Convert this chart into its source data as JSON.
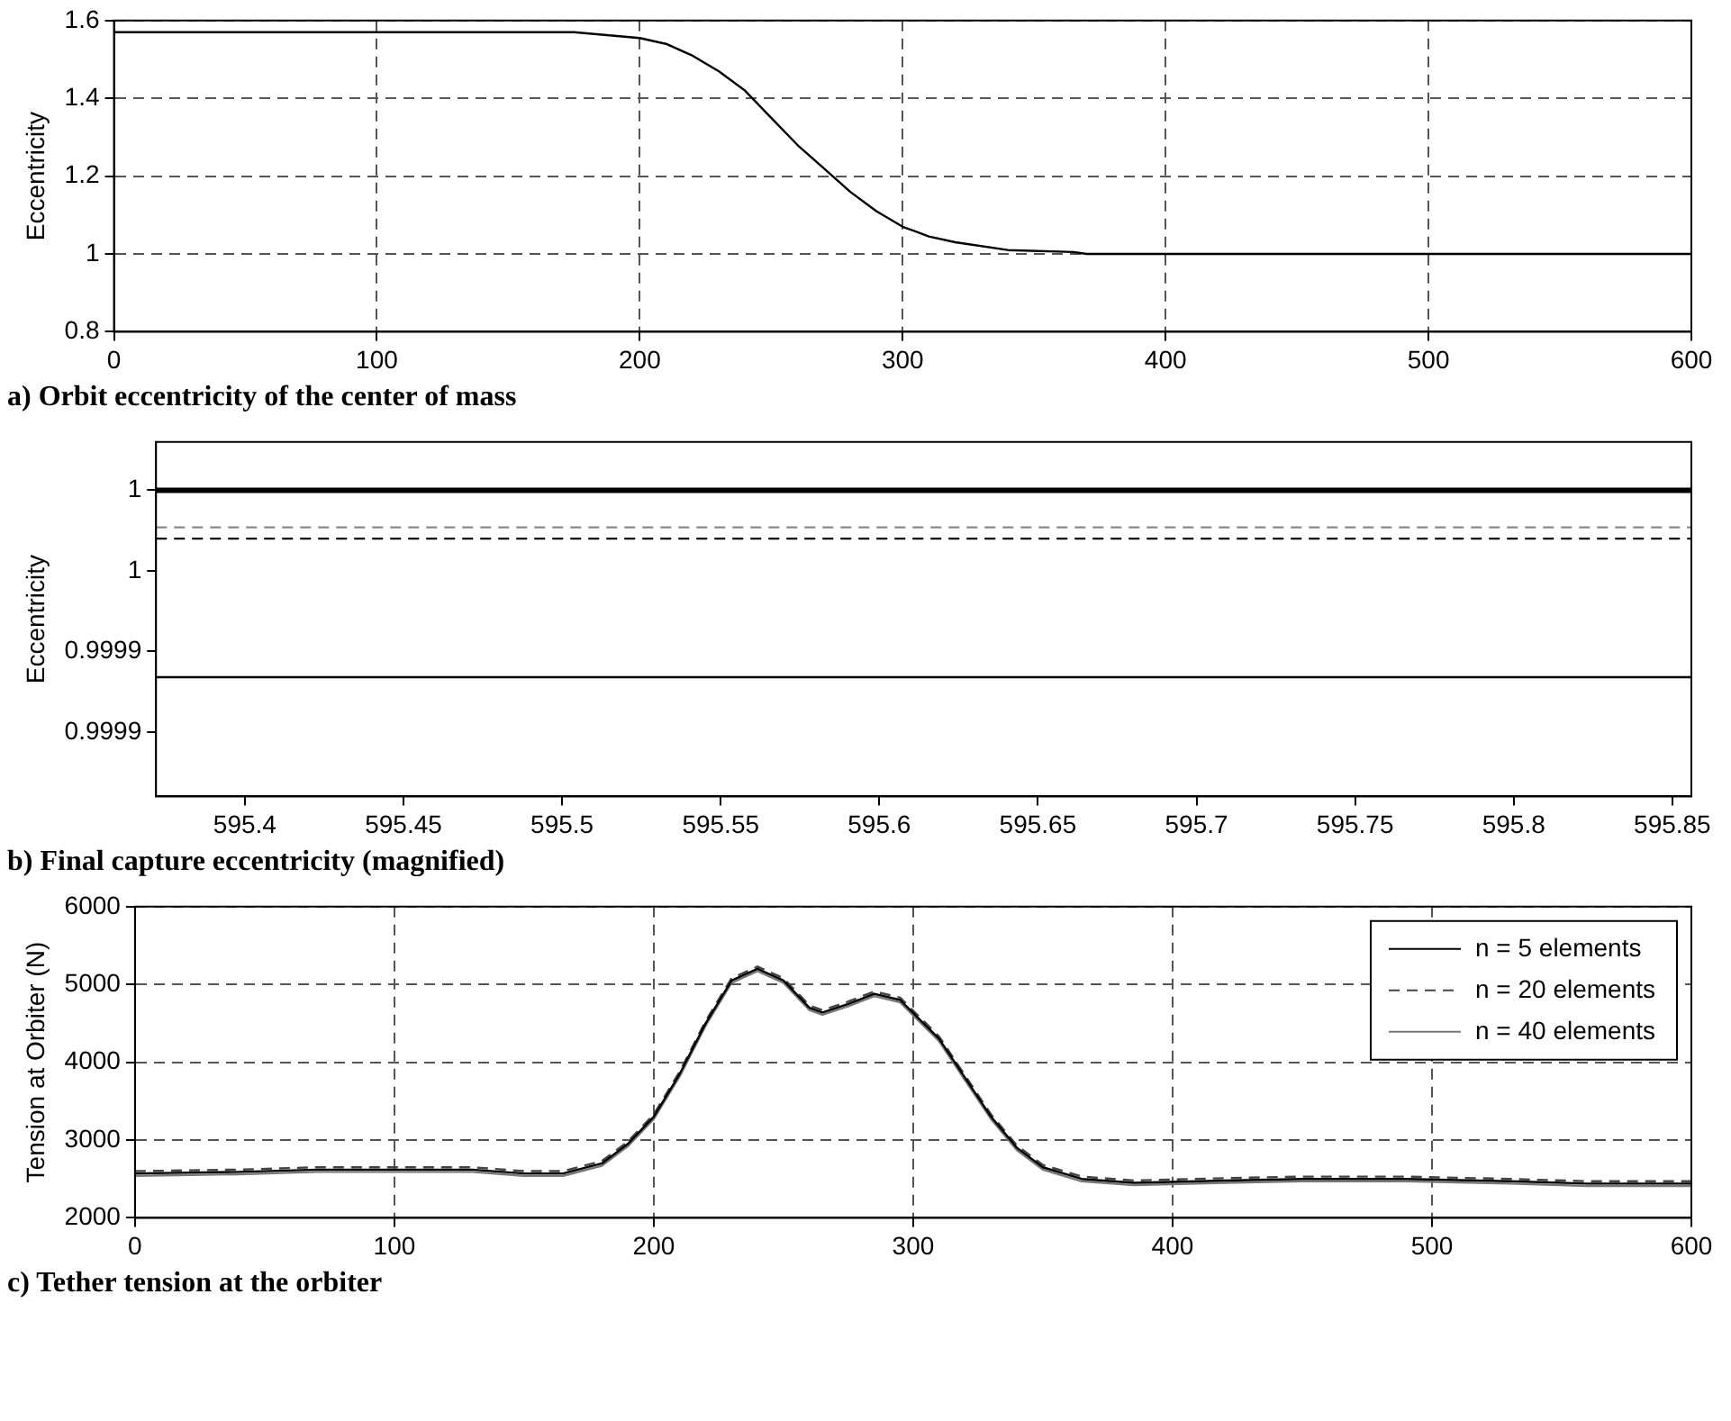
{
  "chart_data": [
    {
      "type": "line",
      "title": "a) Orbit eccentricity of the center of mass",
      "ylabel": "Eccentricity",
      "xlim": [
        0,
        600
      ],
      "xticks": [
        0,
        100,
        200,
        300,
        400,
        500,
        600
      ],
      "ylim": [
        0.8,
        1.6
      ],
      "yticks": [
        0.8,
        1,
        1.2,
        1.4,
        1.6
      ],
      "grid": true,
      "legend": false,
      "series": [
        {
          "color": "#000000",
          "line_style": "solid",
          "x": [
            0,
            175,
            200,
            210,
            220,
            230,
            240,
            250,
            260,
            270,
            280,
            290,
            300,
            310,
            320,
            340,
            365,
            370,
            600
          ],
          "values": [
            1.57,
            1.57,
            1.555,
            1.54,
            1.51,
            1.47,
            1.42,
            1.35,
            1.28,
            1.22,
            1.16,
            1.11,
            1.07,
            1.045,
            1.03,
            1.01,
            1.005,
            1.0,
            1.0
          ]
        }
      ]
    },
    {
      "type": "line",
      "title": "b) Final capture eccentricity (magnified)",
      "ylabel": "Eccentricity",
      "xlim": [
        595.372,
        595.856
      ],
      "xticks": [
        595.4,
        595.45,
        595.5,
        595.55,
        595.6,
        595.65,
        595.7,
        595.75,
        595.8,
        595.85
      ],
      "ylim": [
        0.99981,
        1.00003
      ],
      "yticks": [
        {
          "value": 0.99985,
          "label": "0.9999"
        },
        {
          "value": 0.9999,
          "label": "0.9999"
        },
        {
          "value": 0.99995,
          "label": "1"
        },
        {
          "value": 1.0,
          "label": "1"
        }
      ],
      "grid": false,
      "legend": false,
      "series": [
        {
          "color": "#000000",
          "line_style": "solid",
          "x": [
            595.372,
            595.856
          ],
          "values": [
            1.0,
            1.0
          ]
        },
        {
          "color": "#888888",
          "line_style": "dashed",
          "x": [
            595.372,
            595.856
          ],
          "values": [
            0.999977,
            0.999977
          ]
        },
        {
          "color": "#000000",
          "line_style": "dashed",
          "x": [
            595.372,
            595.856
          ],
          "values": [
            0.99997,
            0.99997
          ]
        },
        {
          "color": "#000000",
          "line_style": "solid",
          "x": [
            595.372,
            595.856
          ],
          "values": [
            0.999884,
            0.999884
          ]
        }
      ]
    },
    {
      "type": "line",
      "title": "c) Tether tension at the orbiter",
      "ylabel": "Tension at Orbiter (N)",
      "xlim": [
        0,
        600
      ],
      "xticks": [
        0,
        100,
        200,
        300,
        400,
        500,
        600
      ],
      "ylim": [
        2000,
        6000
      ],
      "yticks": [
        2000,
        3000,
        4000,
        5000,
        6000
      ],
      "grid": true,
      "legend": "top right",
      "series": [
        {
          "name": "n = 5 elements",
          "color": "#000000",
          "line_style": "solid",
          "x": [
            0,
            40,
            70,
            130,
            150,
            165,
            180,
            190,
            200,
            210,
            220,
            230,
            240,
            250,
            260,
            265,
            275,
            285,
            295,
            310,
            320,
            330,
            340,
            350,
            365,
            385,
            420,
            450,
            490,
            530,
            560,
            600
          ],
          "values": [
            2570,
            2590,
            2620,
            2620,
            2570,
            2570,
            2700,
            2950,
            3300,
            3850,
            4500,
            5050,
            5200,
            5050,
            4700,
            4640,
            4750,
            4880,
            4800,
            4300,
            3800,
            3300,
            2900,
            2650,
            2500,
            2450,
            2480,
            2500,
            2500,
            2470,
            2440,
            2440
          ]
        },
        {
          "name": "n = 20 elements",
          "color": "#444444",
          "line_style": "dashed",
          "x": [
            0,
            40,
            70,
            130,
            150,
            165,
            180,
            190,
            200,
            210,
            220,
            230,
            240,
            250,
            260,
            265,
            275,
            285,
            295,
            310,
            320,
            330,
            340,
            350,
            365,
            385,
            420,
            450,
            490,
            530,
            560,
            600
          ],
          "values": [
            2600,
            2620,
            2650,
            2650,
            2600,
            2600,
            2730,
            2980,
            3330,
            3880,
            4530,
            5080,
            5230,
            5080,
            4730,
            4670,
            4780,
            4910,
            4830,
            4330,
            3830,
            3330,
            2930,
            2680,
            2530,
            2480,
            2510,
            2530,
            2530,
            2500,
            2470,
            2470
          ]
        },
        {
          "name": "n = 40 elements",
          "color": "#777777",
          "line_style": "solid",
          "x": [
            0,
            40,
            70,
            130,
            150,
            165,
            180,
            190,
            200,
            210,
            220,
            230,
            240,
            250,
            260,
            265,
            275,
            285,
            295,
            310,
            320,
            330,
            340,
            350,
            365,
            385,
            420,
            450,
            490,
            530,
            560,
            600
          ],
          "values": [
            2540,
            2560,
            2590,
            2590,
            2540,
            2540,
            2670,
            2920,
            3270,
            3820,
            4470,
            5020,
            5170,
            5020,
            4670,
            4610,
            4720,
            4850,
            4770,
            4270,
            3770,
            3270,
            2870,
            2620,
            2470,
            2420,
            2450,
            2470,
            2470,
            2440,
            2410,
            2410
          ]
        }
      ]
    }
  ]
}
